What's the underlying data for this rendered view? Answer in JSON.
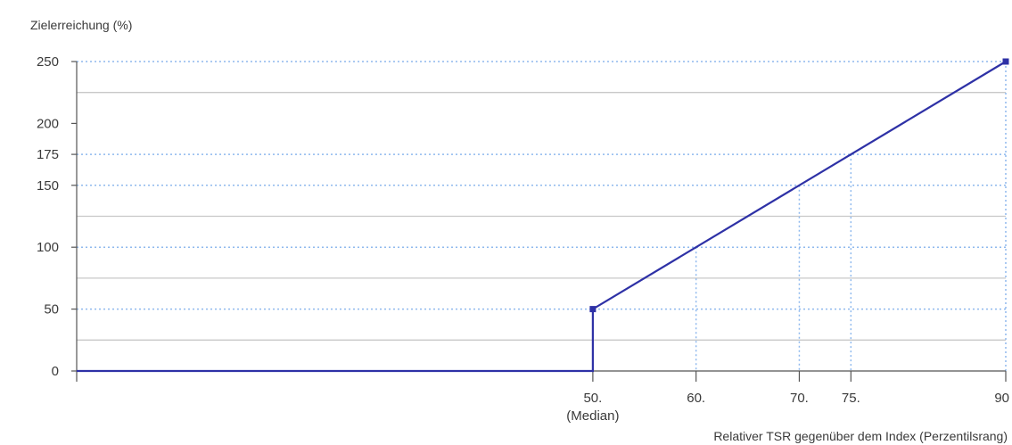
{
  "chart_data": {
    "type": "line",
    "ylabel": "Zielerreichung (%)",
    "xlabel": "Relativer TSR gegenüber dem Index (Perzentilsrang)",
    "xlim": [
      0,
      90
    ],
    "ylim": [
      0,
      250
    ],
    "y_ticks": [
      {
        "value": 0,
        "label": "0"
      },
      {
        "value": 50,
        "label": "50"
      },
      {
        "value": 100,
        "label": "100"
      },
      {
        "value": 150,
        "label": "150"
      },
      {
        "value": 175,
        "label": "175"
      },
      {
        "value": 200,
        "label": "200"
      },
      {
        "value": 250,
        "label": "250"
      }
    ],
    "x_ticks": [
      {
        "value": 50,
        "label": "50.",
        "sublabel": "(Median)"
      },
      {
        "value": 60,
        "label": "60."
      },
      {
        "value": 70,
        "label": "70."
      },
      {
        "value": 75,
        "label": "75."
      },
      {
        "value": 90,
        "label": "90"
      }
    ],
    "solid_gridlines_y": [
      25,
      75,
      125,
      225
    ],
    "dotted_gridlines_y": [
      50,
      100,
      150,
      175,
      250
    ],
    "dotted_guides_x": [
      60,
      70,
      75,
      90
    ],
    "series": [
      {
        "points": [
          {
            "x": 0,
            "y": 0
          },
          {
            "x": 50,
            "y": 0
          },
          {
            "x": 50,
            "y": 50
          },
          {
            "x": 90,
            "y": 250
          }
        ],
        "markers": [
          {
            "x": 50,
            "y": 50
          },
          {
            "x": 90,
            "y": 250
          }
        ]
      }
    ],
    "colors": {
      "line": "#2e31a6",
      "grid": "#c8c8c8",
      "guide": "#8fb9ee",
      "axis": "#555555"
    }
  }
}
